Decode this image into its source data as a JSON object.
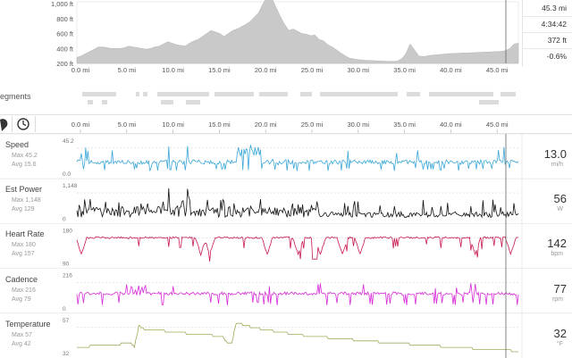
{
  "elevation": {
    "y_ticks": [
      "1,000 ft",
      "800 ft",
      "600 ft",
      "400 ft",
      "200 ft"
    ],
    "readout": {
      "distance": "45.3 mi",
      "time": "4:34:42",
      "elevation": "372 ft",
      "grade": "-0.6%"
    },
    "profile_ft": [
      280,
      300,
      330,
      360,
      390,
      420,
      420,
      410,
      400,
      400,
      400,
      410,
      430,
      420,
      410,
      400,
      390,
      400,
      420,
      430,
      460,
      490,
      470,
      450,
      440,
      430,
      470,
      500,
      520,
      560,
      600,
      640,
      620,
      600,
      560,
      600,
      640,
      660,
      690,
      720,
      760,
      820,
      880,
      1000,
      1100,
      1080,
      950,
      830,
      720,
      640,
      660,
      630,
      600,
      590,
      570,
      580,
      520,
      500,
      450,
      420,
      380,
      340,
      300,
      270,
      260,
      250,
      245,
      240,
      238,
      235,
      232,
      230,
      228,
      228,
      230,
      260,
      330,
      460,
      380,
      300,
      290,
      300,
      310,
      315,
      320,
      325,
      330,
      332,
      335,
      338,
      340,
      342,
      345,
      348,
      350,
      352,
      355,
      358,
      360,
      370,
      400,
      460,
      470
    ]
  },
  "segments": {
    "label": "egments"
  },
  "toolbar": {
    "pin_icon": "map-pin-icon",
    "clock_icon": "clock-icon"
  },
  "x_axis_labels": [
    "0.0 mi",
    "5.0 mi",
    "10.0 mi",
    "15.0 mi",
    "20.0 mi",
    "25.0 mi",
    "30.0 mi",
    "35.0 mi",
    "40.0 mi",
    "45.0 mi"
  ],
  "panels": [
    {
      "id": "speed",
      "title": "Speed",
      "max": "Max 45.2",
      "avg": "Avg 15.6",
      "ytop": "45.2",
      "ybot": "0.0",
      "value": "13.0",
      "unit": "mi/h",
      "color": "#3aa7d8"
    },
    {
      "id": "power",
      "title": "Est Power",
      "max": "Max 1,148",
      "avg": "Avg 129",
      "ytop": "1,148",
      "ybot": "0",
      "value": "56",
      "unit": "W",
      "color": "#111111"
    },
    {
      "id": "hr",
      "title": "Heart Rate",
      "max": "Max 180",
      "avg": "Avg 157",
      "ytop": "180",
      "ybot": "90",
      "value": "142",
      "unit": "bpm",
      "color": "#c8194f"
    },
    {
      "id": "cadence",
      "title": "Cadence",
      "max": "Max 216",
      "avg": "Avg 79",
      "ytop": "216",
      "ybot": "0",
      "value": "77",
      "unit": "rpm",
      "color": "#d62bd6"
    },
    {
      "id": "temp",
      "title": "Temperature",
      "max": "Max 57",
      "avg": "Avg 42",
      "ytop": "57",
      "ybot": "32",
      "value": "32",
      "unit": "°F",
      "color": "#a3a85a"
    }
  ]
}
